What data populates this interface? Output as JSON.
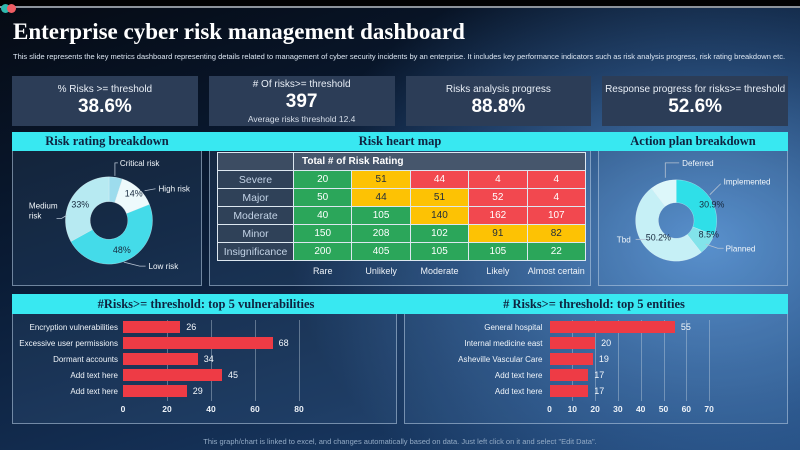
{
  "header": {
    "title": "Enterprise cyber risk management dashboard",
    "subtitle": "This slide represents the key metrics dashboard representing details related to management of cyber security incidents by an enterprise. It includes key performance indicators such as risk analysis progress, risk rating breakdown etc."
  },
  "kpis": [
    {
      "label": "% Risks >= threshold",
      "value": "38.6%"
    },
    {
      "label": "# Of risks>= threshold",
      "value": "397",
      "note": "Average risks threshold 12.4"
    },
    {
      "label": "Risks analysis progress",
      "value": "88.8%"
    },
    {
      "label": "Response progress for risks>= threshold",
      "value": "52.6%"
    }
  ],
  "chart_data": [
    {
      "id": "risk_rating",
      "type": "donut",
      "title": "Risk rating breakdown",
      "slices": [
        {
          "label": "Critical risk",
          "pct": 5,
          "pct_label": "",
          "color": "#9ddced"
        },
        {
          "label": "High risk",
          "pct": 14,
          "pct_label": "14%",
          "color": "#eefafc"
        },
        {
          "label": "Low risk",
          "pct": 48,
          "pct_label": "48%",
          "color": "#44dbe9"
        },
        {
          "label": "Medium risk",
          "pct": 33,
          "pct_label": "33%",
          "color": "#b7eaf2"
        }
      ]
    },
    {
      "id": "heat_map",
      "type": "heatmap",
      "title": "Risk heart map",
      "corner_label": "Total # of Risk Rating",
      "rows": [
        "Severe",
        "Major",
        "Moderate",
        "Minor",
        "Insignificance"
      ],
      "cols": [
        "Rare",
        "Unlikely",
        "Moderate",
        "Likely",
        "Almost certain"
      ],
      "values": [
        [
          20,
          51,
          44,
          4,
          4
        ],
        [
          50,
          44,
          51,
          52,
          4
        ],
        [
          40,
          105,
          140,
          162,
          107
        ],
        [
          150,
          208,
          102,
          91,
          82
        ],
        [
          200,
          405,
          105,
          105,
          22
        ]
      ],
      "cell_colors": [
        [
          "g",
          "a",
          "r",
          "r",
          "r"
        ],
        [
          "g",
          "a",
          "a",
          "r",
          "r"
        ],
        [
          "g",
          "g",
          "a",
          "r",
          "r"
        ],
        [
          "g",
          "g",
          "g",
          "a",
          "a"
        ],
        [
          "g",
          "g",
          "g",
          "g",
          "g"
        ]
      ],
      "palette": {
        "g": "#2ba65a",
        "a": "#fdc204",
        "r": "#f2484f"
      }
    },
    {
      "id": "action_plan",
      "type": "donut",
      "title": "Action plan breakdown",
      "slices": [
        {
          "label": "Implemented",
          "pct": 30.9,
          "pct_label": "30.9%",
          "color": "#2fdfe8"
        },
        {
          "label": "Planned",
          "pct": 8.5,
          "pct_label": "8.5%",
          "color": "#82e3ea"
        },
        {
          "label": "Tbd",
          "pct": 50.2,
          "pct_label": "50.2%",
          "color": "#c6f0f6"
        },
        {
          "label": "Deferred",
          "pct": 10.4,
          "pct_label": "",
          "color": "#ddf7fa"
        }
      ]
    },
    {
      "id": "vuln",
      "type": "bar",
      "title": "#Risks>= threshold: top 5 vulnerabilities",
      "categories": [
        "Encryption vulnerabilities",
        "Excessive user permissions",
        "Dormant accounts",
        "Add text here",
        "Add text here"
      ],
      "values": [
        26,
        68,
        34,
        45,
        29
      ],
      "ticks": [
        0,
        20,
        40,
        60,
        80
      ],
      "xmax": 100,
      "bar_color": "#ee3b45"
    },
    {
      "id": "entities",
      "type": "bar",
      "title": "# Risks>= threshold: top 5 entities",
      "categories": [
        "General hospital",
        "Internal medicine east",
        "Asheville Vascular Care",
        "Add text here",
        "Add text here"
      ],
      "values": [
        55,
        20,
        19,
        17,
        17
      ],
      "ticks": [
        0,
        10,
        20,
        30,
        40,
        50,
        60,
        70
      ],
      "xmax": 75,
      "bar_color": "#ee3b45"
    }
  ],
  "footer": {
    "text": "This graph/chart is linked to excel, and changes automatically based on data. Just left click on it and select \"Edit Data\"."
  }
}
